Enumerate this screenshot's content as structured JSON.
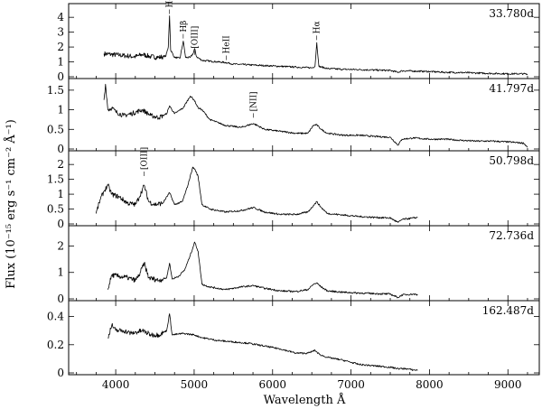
{
  "chart_data": {
    "type": "line",
    "xlabel": "Wavelength Å",
    "ylabel": "Flux (10⁻¹⁵ erg s⁻¹ cm⁻² Å⁻¹)",
    "xlim": [
      3400,
      9400
    ],
    "xticks": [
      4000,
      5000,
      6000,
      7000,
      8000,
      9000
    ],
    "grid": false,
    "panels": [
      {
        "label": "33.780d",
        "ylim": [
          0,
          4.8
        ],
        "yticks": [
          0,
          1,
          2,
          3,
          4
        ],
        "annotations": [
          {
            "text": "HeII",
            "x": 4686,
            "y": 4.1
          },
          {
            "text": "Hβ",
            "x": 4861,
            "y": 2.45
          },
          {
            "text": "[OIII]",
            "x": 5007,
            "y": 1.35
          },
          {
            "text": "HeII",
            "x": 5411,
            "y": 1.0
          },
          {
            "text": "Hα",
            "x": 6563,
            "y": 2.35
          }
        ],
        "wave": [
          3850,
          3950,
          4050,
          4150,
          4250,
          4340,
          4450,
          4550,
          4640,
          4670,
          4686,
          4700,
          4750,
          4820,
          4861,
          4890,
          4950,
          4990,
          5007,
          5030,
          5100,
          5200,
          5300,
          5411,
          5500,
          5700,
          5900,
          6100,
          6300,
          6500,
          6540,
          6563,
          6590,
          6700,
          6900,
          7100,
          7300,
          7500,
          7600,
          7650,
          7800,
          8000,
          8200,
          8400,
          8600,
          8800,
          9000,
          9200,
          9250
        ],
        "flux": [
          1.55,
          1.5,
          1.45,
          1.4,
          1.35,
          1.5,
          1.35,
          1.3,
          1.4,
          2.0,
          4.1,
          1.8,
          1.3,
          1.25,
          2.4,
          1.3,
          1.3,
          1.6,
          1.9,
          1.35,
          1.1,
          1.05,
          1.0,
          0.95,
          0.85,
          0.8,
          0.75,
          0.7,
          0.65,
          0.6,
          0.7,
          2.3,
          0.7,
          0.55,
          0.5,
          0.48,
          0.45,
          0.42,
          0.3,
          0.4,
          0.38,
          0.35,
          0.3,
          0.28,
          0.25,
          0.22,
          0.2,
          0.2,
          0.15
        ]
      },
      {
        "label": "41.797d",
        "ylim": [
          0,
          1.75
        ],
        "yticks": [
          0,
          0.5,
          1,
          1.5
        ],
        "annotations": [
          {
            "text": "[NII]",
            "x": 5755,
            "y": 0.75
          }
        ],
        "wave": [
          3850,
          3870,
          3900,
          3950,
          4000,
          4100,
          4200,
          4340,
          4450,
          4550,
          4650,
          4686,
          4750,
          4861,
          4950,
          5000,
          5050,
          5100,
          5200,
          5400,
          5600,
          5755,
          5900,
          6100,
          6300,
          6450,
          6520,
          6560,
          6620,
          6700,
          6900,
          7100,
          7300,
          7500,
          7600,
          7650,
          7800,
          8000,
          8200,
          8400,
          8600,
          8800,
          9000,
          9200,
          9250
        ],
        "flux": [
          1.25,
          1.65,
          1.0,
          1.05,
          0.95,
          0.85,
          0.9,
          1.0,
          0.85,
          0.8,
          0.9,
          1.1,
          0.9,
          1.05,
          1.35,
          1.25,
          1.05,
          1.0,
          0.75,
          0.6,
          0.55,
          0.65,
          0.5,
          0.45,
          0.4,
          0.4,
          0.6,
          0.62,
          0.5,
          0.4,
          0.35,
          0.35,
          0.32,
          0.3,
          0.1,
          0.25,
          0.28,
          0.25,
          0.25,
          0.22,
          0.2,
          0.2,
          0.18,
          0.15,
          0.05
        ]
      },
      {
        "label": "50.798d",
        "ylim": [
          0,
          2.4
        ],
        "yticks": [
          0,
          0.5,
          1,
          1.5,
          2
        ],
        "annotations": [
          {
            "text": "[OIII]",
            "x": 4363,
            "y": 1.55
          }
        ],
        "wave": [
          3750,
          3800,
          3850,
          3900,
          3950,
          4050,
          4150,
          4250,
          4300,
          4363,
          4420,
          4500,
          4600,
          4686,
          4750,
          4850,
          4920,
          4980,
          5007,
          5050,
          5100,
          5200,
          5400,
          5600,
          5755,
          5900,
          6100,
          6300,
          6450,
          6520,
          6563,
          6620,
          6700,
          6900,
          7100,
          7300,
          7500,
          7600,
          7650,
          7800,
          7850
        ],
        "flux": [
          0.35,
          0.8,
          1.1,
          1.3,
          1.0,
          0.9,
          0.7,
          0.65,
          0.9,
          1.3,
          0.75,
          0.65,
          0.7,
          1.05,
          0.65,
          0.75,
          1.3,
          1.9,
          1.85,
          1.6,
          0.65,
          0.5,
          0.4,
          0.45,
          0.55,
          0.4,
          0.32,
          0.32,
          0.4,
          0.62,
          0.75,
          0.55,
          0.35,
          0.3,
          0.25,
          0.22,
          0.2,
          0.05,
          0.15,
          0.2,
          0.22
        ]
      },
      {
        "label": "72.736d",
        "ylim": [
          0,
          2.7
        ],
        "yticks": [
          0,
          1,
          2
        ],
        "annotations": [],
        "wave": [
          3900,
          3950,
          4050,
          4150,
          4250,
          4300,
          4363,
          4420,
          4550,
          4650,
          4686,
          4720,
          4800,
          4880,
          4950,
          5007,
          5050,
          5100,
          5200,
          5400,
          5600,
          5755,
          5900,
          6100,
          6300,
          6450,
          6520,
          6563,
          6620,
          6700,
          6900,
          7100,
          7300,
          7500,
          7600,
          7650,
          7800,
          7850
        ],
        "flux": [
          0.35,
          0.9,
          0.85,
          0.8,
          0.7,
          0.9,
          1.35,
          0.8,
          0.7,
          0.8,
          1.35,
          0.75,
          0.85,
          1.1,
          1.65,
          2.15,
          1.8,
          0.55,
          0.45,
          0.35,
          0.45,
          0.5,
          0.4,
          0.3,
          0.28,
          0.35,
          0.55,
          0.6,
          0.45,
          0.3,
          0.25,
          0.22,
          0.2,
          0.18,
          0.05,
          0.15,
          0.18,
          0.15
        ]
      },
      {
        "label": "162.487d",
        "ylim": [
          0,
          0.5
        ],
        "yticks": [
          0,
          0.2,
          0.4
        ],
        "annotations": [],
        "wave": [
          3900,
          3950,
          4000,
          4100,
          4200,
          4340,
          4450,
          4550,
          4650,
          4686,
          4720,
          4861,
          5000,
          5100,
          5300,
          5500,
          5700,
          5900,
          6100,
          6300,
          6450,
          6540,
          6600,
          6700,
          6900,
          7100,
          7300,
          7500,
          7600,
          7700,
          7800,
          7850
        ],
        "flux": [
          0.25,
          0.34,
          0.3,
          0.3,
          0.28,
          0.3,
          0.27,
          0.27,
          0.3,
          0.42,
          0.27,
          0.28,
          0.27,
          0.25,
          0.23,
          0.22,
          0.21,
          0.19,
          0.17,
          0.14,
          0.14,
          0.16,
          0.13,
          0.11,
          0.09,
          0.06,
          0.05,
          0.04,
          0.03,
          0.03,
          0.02,
          0.02
        ]
      }
    ]
  }
}
